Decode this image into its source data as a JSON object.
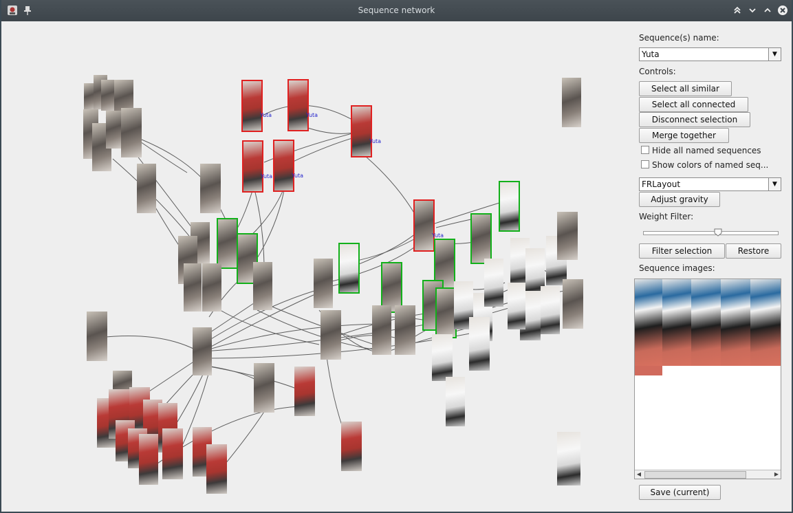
{
  "window": {
    "title": "Sequence network",
    "title_icons": [
      "app-logo-icon",
      "pin-icon"
    ],
    "control_icons": [
      "shade-icon",
      "minimize-icon",
      "maximize-icon",
      "close-icon"
    ]
  },
  "graph": {
    "node_label": "Yuta",
    "colors": {
      "named": "#e02020",
      "selected": "#12b01a",
      "edge": "#444444",
      "label": "#2222cc"
    }
  },
  "panel": {
    "sequence_name_label": "Sequence(s) name:",
    "sequence_name_value": "Yuta",
    "controls_label": "Controls:",
    "buttons": {
      "select_all_similar": "Select all similar",
      "select_all_connected": "Select all connected",
      "disconnect_selection": "Disconnect selection",
      "merge_together": "Merge together",
      "adjust_gravity": "Adjust gravity",
      "filter_selection": "Filter selection",
      "restore": "Restore",
      "save_current": "Save (current)"
    },
    "checkboxes": {
      "hide_named": {
        "label": "Hide all named sequences",
        "checked": false
      },
      "show_colors": {
        "label": "Show colors of named seq...",
        "checked": false
      }
    },
    "layout_value": "FRLayout",
    "weight_filter_label": "Weight Filter:",
    "weight_filter_level": 0.58,
    "sequence_images_label": "Sequence images:"
  }
}
